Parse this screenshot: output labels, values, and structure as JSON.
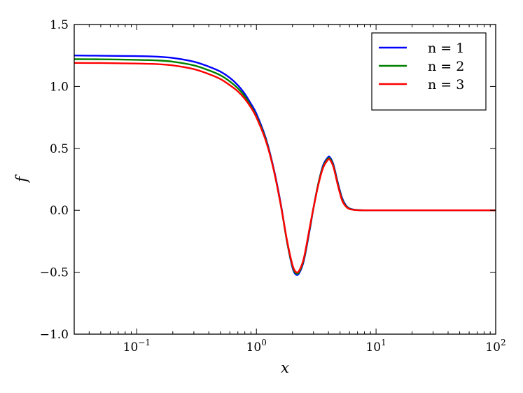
{
  "chart_data": {
    "type": "line",
    "title": "",
    "xlabel": "x",
    "ylabel": "f",
    "xscale": "log",
    "xlim": [
      0.03,
      100
    ],
    "ylim": [
      -1.0,
      1.5
    ],
    "grid": false,
    "legend_position": "top-right",
    "x_ticks": [
      {
        "value": 0.1,
        "base": "10",
        "exp": "−1"
      },
      {
        "value": 1,
        "base": "10",
        "exp": "0"
      },
      {
        "value": 10,
        "base": "10",
        "exp": "1"
      },
      {
        "value": 100,
        "base": "10",
        "exp": "2"
      }
    ],
    "y_ticks": [
      {
        "value": -1.0,
        "label": "−1.0"
      },
      {
        "value": -0.5,
        "label": "−0.5"
      },
      {
        "value": 0.0,
        "label": "0.0"
      },
      {
        "value": 0.5,
        "label": "0.5"
      },
      {
        "value": 1.0,
        "label": "1.0"
      },
      {
        "value": 1.5,
        "label": "1.5"
      }
    ],
    "series": [
      {
        "name": "n = 1",
        "color": "#0000ff",
        "x": [
          0.03,
          0.05,
          0.1,
          0.15,
          0.2,
          0.3,
          0.4,
          0.5,
          0.6,
          0.7,
          0.8,
          0.9,
          1.0,
          1.2,
          1.4,
          1.6,
          1.8,
          2.0,
          2.15,
          2.3,
          2.5,
          2.8,
          3.0,
          3.3,
          3.6,
          3.9,
          4.1,
          4.4,
          4.8,
          5.2,
          5.6,
          6.0,
          6.5,
          7.0,
          8.0,
          10.0,
          20.0,
          50.0,
          100.0
        ],
        "y": [
          1.25,
          1.248,
          1.245,
          1.24,
          1.23,
          1.2,
          1.16,
          1.12,
          1.07,
          1.01,
          0.94,
          0.86,
          0.78,
          0.58,
          0.33,
          0.05,
          -0.25,
          -0.46,
          -0.52,
          -0.5,
          -0.4,
          -0.15,
          0.02,
          0.22,
          0.36,
          0.42,
          0.43,
          0.37,
          0.22,
          0.1,
          0.04,
          0.015,
          0.006,
          0.002,
          0.0,
          0.0,
          0.0,
          0.0,
          0.0
        ]
      },
      {
        "name": "n = 2",
        "color": "#008000",
        "x": [
          0.03,
          0.05,
          0.1,
          0.15,
          0.2,
          0.3,
          0.4,
          0.5,
          0.6,
          0.7,
          0.8,
          0.9,
          1.0,
          1.2,
          1.4,
          1.6,
          1.8,
          2.0,
          2.15,
          2.3,
          2.5,
          2.8,
          3.0,
          3.3,
          3.6,
          3.9,
          4.1,
          4.4,
          4.8,
          5.2,
          5.6,
          6.0,
          6.5,
          7.0,
          8.0,
          10.0,
          20.0,
          50.0,
          100.0
        ],
        "y": [
          1.22,
          1.219,
          1.215,
          1.21,
          1.2,
          1.17,
          1.13,
          1.09,
          1.04,
          0.985,
          0.92,
          0.84,
          0.76,
          0.57,
          0.32,
          0.04,
          -0.25,
          -0.45,
          -0.51,
          -0.49,
          -0.39,
          -0.14,
          0.02,
          0.22,
          0.35,
          0.41,
          0.42,
          0.36,
          0.21,
          0.09,
          0.035,
          0.013,
          0.005,
          0.002,
          0.0,
          0.0,
          0.0,
          0.0,
          0.0
        ]
      },
      {
        "name": "n = 3",
        "color": "#ff0000",
        "x": [
          0.03,
          0.05,
          0.1,
          0.15,
          0.2,
          0.3,
          0.4,
          0.5,
          0.6,
          0.7,
          0.8,
          0.9,
          1.0,
          1.2,
          1.4,
          1.6,
          1.8,
          2.0,
          2.15,
          2.3,
          2.5,
          2.8,
          3.0,
          3.3,
          3.6,
          3.9,
          4.1,
          4.4,
          4.8,
          5.2,
          5.6,
          6.0,
          6.5,
          7.0,
          8.0,
          10.0,
          20.0,
          50.0,
          100.0
        ],
        "y": [
          1.19,
          1.189,
          1.185,
          1.18,
          1.17,
          1.14,
          1.1,
          1.06,
          1.01,
          0.96,
          0.9,
          0.83,
          0.75,
          0.56,
          0.32,
          0.04,
          -0.24,
          -0.44,
          -0.5,
          -0.48,
          -0.38,
          -0.13,
          0.02,
          0.21,
          0.34,
          0.4,
          0.41,
          0.35,
          0.2,
          0.08,
          0.03,
          0.01,
          0.004,
          0.001,
          0.0,
          0.0,
          0.0,
          0.0,
          0.0
        ]
      }
    ]
  }
}
